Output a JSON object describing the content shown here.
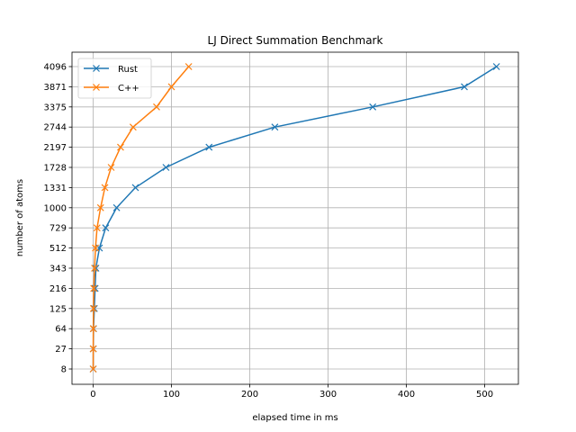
{
  "chart_data": {
    "type": "line",
    "title": "LJ Direct Summation Benchmark",
    "xlabel": "elapsed time in ms",
    "ylabel": "number of atoms",
    "xlim": [
      -27,
      543
    ],
    "x_ticks": [
      0,
      100,
      200,
      300,
      400,
      500
    ],
    "y_categories": [
      "8",
      "27",
      "64",
      "125",
      "216",
      "343",
      "512",
      "729",
      "1000",
      "1331",
      "1728",
      "2197",
      "2744",
      "3375",
      "3871",
      "4096"
    ],
    "grid": true,
    "legend": "top-left",
    "series": [
      {
        "name": "Rust",
        "color": "#1f77b4",
        "marker": "x",
        "x": [
          0.1,
          0.2,
          0.5,
          1.5,
          2.5,
          3.5,
          8.0,
          16.0,
          30.0,
          54.0,
          93.0,
          148.0,
          232.0,
          357.0,
          474.0,
          515.0
        ]
      },
      {
        "name": "C++",
        "color": "#ff7f0e",
        "marker": "x",
        "x": [
          0.1,
          0.1,
          0.2,
          0.4,
          0.8,
          1.8,
          3.0,
          5.0,
          9.5,
          15.0,
          23.0,
          35.0,
          51.0,
          81.0,
          100.0,
          122.0
        ]
      }
    ]
  }
}
